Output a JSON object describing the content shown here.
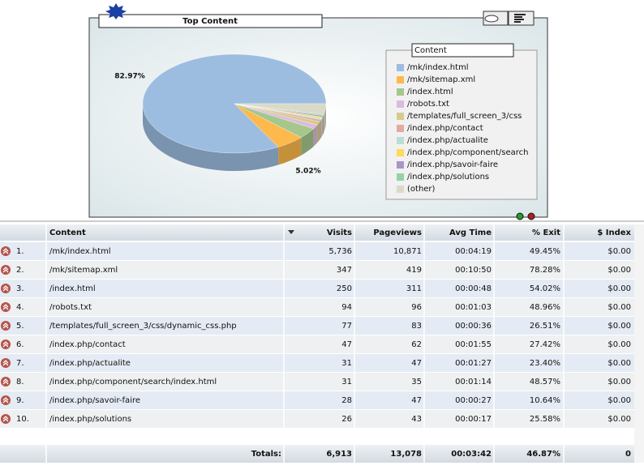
{
  "panel": {
    "title": "Top Content",
    "chart": {
      "type": "pie",
      "legend_title": "Content",
      "categories": [
        "/mk/index.html",
        "/mk/sitemap.xml",
        "/index.html",
        "/robots.txt",
        "/templates/full_screen_3/css",
        "/index.php/contact",
        "/index.php/actualite",
        "/index.php/component/search",
        "/index.php/savoir-faire",
        "/index.php/solutions",
        "(other)"
      ],
      "values": [
        82.97,
        5.02,
        3.62,
        1.36,
        1.11,
        0.68,
        0.45,
        0.45,
        0.41,
        0.38,
        3.56
      ],
      "value_labels": [
        "82.97%",
        "5.02%",
        null,
        null,
        null,
        null,
        null,
        null,
        null,
        null,
        null
      ],
      "colors": [
        "#9dbde0",
        "#fdb94b",
        "#a5c78c",
        "#dcbadf",
        "#d6cb8c",
        "#e3aaa2",
        "#bbddd6",
        "#fbdc5c",
        "#aa95cb",
        "#92d3a5",
        "#dbdac8"
      ]
    }
  },
  "table": {
    "headers": [
      "Content",
      "Visits",
      "Pageviews",
      "Avg Time",
      "% Exit",
      "$ Index"
    ],
    "rows": [
      [
        "1.",
        "/mk/index.html",
        "5,736",
        "10,871",
        "00:04:19",
        "49.45%",
        "$0.00"
      ],
      [
        "2.",
        "/mk/sitemap.xml",
        "347",
        "419",
        "00:10:50",
        "78.28%",
        "$0.00"
      ],
      [
        "3.",
        "/index.html",
        "250",
        "311",
        "00:00:48",
        "54.02%",
        "$0.00"
      ],
      [
        "4.",
        "/robots.txt",
        "94",
        "96",
        "00:01:03",
        "48.96%",
        "$0.00"
      ],
      [
        "5.",
        "/templates/full_screen_3/css/dynamic_css.php",
        "77",
        "83",
        "00:00:36",
        "26.51%",
        "$0.00"
      ],
      [
        "6.",
        "/index.php/contact",
        "47",
        "62",
        "00:01:55",
        "27.42%",
        "$0.00"
      ],
      [
        "7.",
        "/index.php/actualite",
        "31",
        "47",
        "00:01:27",
        "23.40%",
        "$0.00"
      ],
      [
        "8.",
        "/index.php/component/search/index.html",
        "31",
        "35",
        "00:01:14",
        "48.57%",
        "$0.00"
      ],
      [
        "9.",
        "/index.php/savoir-faire",
        "28",
        "47",
        "00:00:27",
        "10.64%",
        "$0.00"
      ],
      [
        "10.",
        "/index.php/solutions",
        "26",
        "43",
        "00:00:17",
        "25.58%",
        "$0.00"
      ]
    ],
    "totals": {
      "label": "Totals:",
      "values": [
        "6,913",
        "13,078",
        "00:03:42",
        "46.87%",
        "0"
      ]
    }
  }
}
